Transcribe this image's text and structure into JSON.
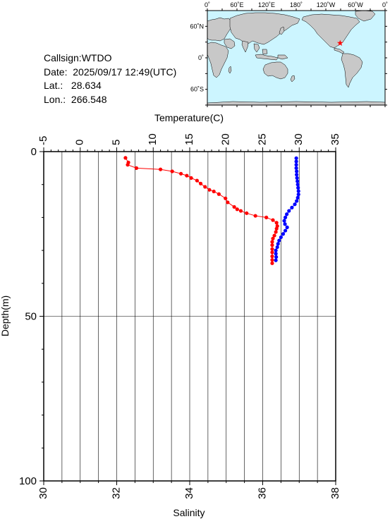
{
  "info": {
    "callsign": "Callsign:WTDO",
    "date": "Date:  2025/09/17 12:49(UTC)",
    "lat": "Lat.:   28.634",
    "lon": "Lon.:  266.548"
  },
  "map": {
    "lon_ticks": [
      "0˚",
      "60˚E",
      "120˚E",
      "180˚",
      "120˚W",
      "60˚W",
      "0˚"
    ],
    "lat_ticks": [
      "60˚N",
      "0˚",
      "60˚S"
    ],
    "ocean_color": "#ccf5ff",
    "land_color": "#c8c8c8",
    "marker_color": "#ff0000",
    "marker": {
      "lon": 266.548,
      "lat": 28.634
    }
  },
  "chart_data": {
    "type": "line",
    "xlabel_top": "Temperature(C)",
    "xlabel_bottom": "Salinity",
    "ylabel": "Depth(m)",
    "temperature_ticks": [
      "-5",
      "0",
      "5",
      "10",
      "15",
      "20",
      "25",
      "30",
      "35"
    ],
    "salinity_ticks": [
      "30",
      "32",
      "34",
      "36",
      "38"
    ],
    "depth_ticks": [
      "0",
      "50",
      "100"
    ],
    "temperature_range": [
      -5,
      35
    ],
    "salinity_range": [
      30,
      38
    ],
    "depth_range": [
      0,
      100
    ],
    "grid": true,
    "series": [
      {
        "quantity": "temperature",
        "color": "#ff0000",
        "points": [
          [
            6.2,
            1.9
          ],
          [
            6.6,
            3.3
          ],
          [
            6.5,
            4.0
          ],
          [
            7.7,
            5.0
          ],
          [
            11.0,
            5.4
          ],
          [
            12.6,
            6.0
          ],
          [
            13.8,
            6.7
          ],
          [
            14.6,
            7.3
          ],
          [
            15.2,
            8.0
          ],
          [
            16.0,
            8.8
          ],
          [
            16.5,
            9.7
          ],
          [
            17.1,
            10.7
          ],
          [
            17.7,
            11.6
          ],
          [
            18.3,
            12.1
          ],
          [
            19.0,
            12.9
          ],
          [
            19.9,
            14.2
          ],
          [
            20.2,
            15.4
          ],
          [
            21.1,
            16.8
          ],
          [
            21.5,
            17.5
          ],
          [
            22.0,
            18.0
          ],
          [
            22.8,
            18.7
          ],
          [
            24.0,
            19.5
          ],
          [
            25.5,
            20.0
          ],
          [
            26.4,
            20.8
          ],
          [
            26.9,
            21.6
          ],
          [
            27.0,
            22.6
          ],
          [
            26.9,
            23.4
          ],
          [
            26.8,
            24.4
          ],
          [
            26.6,
            25.5
          ],
          [
            26.4,
            26.4
          ],
          [
            26.3,
            27.4
          ],
          [
            26.3,
            28.4
          ],
          [
            26.3,
            29.6
          ],
          [
            26.3,
            30.6
          ],
          [
            26.3,
            31.8
          ],
          [
            26.3,
            32.9
          ],
          [
            26.3,
            33.9
          ]
        ]
      },
      {
        "quantity": "salinity",
        "color": "#0000ff",
        "points": [
          [
            36.92,
            2.0
          ],
          [
            36.92,
            3.0
          ],
          [
            36.92,
            4.0
          ],
          [
            36.92,
            5.0
          ],
          [
            36.93,
            6.0
          ],
          [
            36.93,
            7.0
          ],
          [
            36.94,
            8.0
          ],
          [
            36.95,
            9.0
          ],
          [
            36.96,
            10.0
          ],
          [
            36.97,
            11.0
          ],
          [
            36.98,
            12.0
          ],
          [
            36.98,
            13.0
          ],
          [
            36.96,
            14.0
          ],
          [
            36.93,
            15.0
          ],
          [
            36.88,
            16.0
          ],
          [
            36.8,
            17.0
          ],
          [
            36.72,
            18.0
          ],
          [
            36.66,
            19.0
          ],
          [
            36.62,
            20.0
          ],
          [
            36.59,
            21.0
          ],
          [
            36.61,
            22.0
          ],
          [
            36.67,
            23.0
          ],
          [
            36.62,
            24.0
          ],
          [
            36.56,
            25.0
          ],
          [
            36.5,
            26.0
          ],
          [
            36.45,
            27.0
          ],
          [
            36.42,
            28.0
          ],
          [
            36.4,
            29.0
          ],
          [
            36.36,
            30.0
          ],
          [
            36.36,
            31.0
          ],
          [
            36.37,
            32.0
          ],
          [
            36.36,
            33.0
          ]
        ]
      }
    ]
  }
}
